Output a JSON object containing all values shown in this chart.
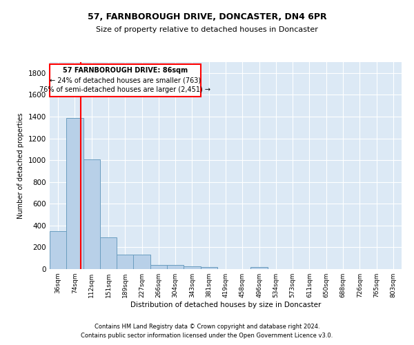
{
  "title1": "57, FARNBOROUGH DRIVE, DONCASTER, DN4 6PR",
  "title2": "Size of property relative to detached houses in Doncaster",
  "xlabel": "Distribution of detached houses by size in Doncaster",
  "ylabel": "Number of detached properties",
  "footer1": "Contains HM Land Registry data © Crown copyright and database right 2024.",
  "footer2": "Contains public sector information licensed under the Open Government Licence v3.0.",
  "bin_labels": [
    "36sqm",
    "74sqm",
    "112sqm",
    "151sqm",
    "189sqm",
    "227sqm",
    "266sqm",
    "304sqm",
    "343sqm",
    "381sqm",
    "419sqm",
    "458sqm",
    "496sqm",
    "534sqm",
    "573sqm",
    "611sqm",
    "650sqm",
    "688sqm",
    "726sqm",
    "765sqm",
    "803sqm"
  ],
  "bar_heights": [
    350,
    1390,
    1010,
    290,
    130,
    130,
    40,
    40,
    28,
    18,
    0,
    0,
    18,
    0,
    0,
    0,
    0,
    0,
    0,
    0,
    0
  ],
  "bar_color": "#b8d0e8",
  "bar_edge_color": "#6a9dbf",
  "red_line_x": 1.35,
  "annotation_text1": "57 FARNBOROUGH DRIVE: 86sqm",
  "annotation_text2": "← 24% of detached houses are smaller (763)",
  "annotation_text3": "76% of semi-detached houses are larger (2,451) →",
  "ylim": [
    0,
    1900
  ],
  "yticks": [
    0,
    200,
    400,
    600,
    800,
    1000,
    1200,
    1400,
    1600,
    1800
  ],
  "plot_bg_color": "#dce9f5"
}
